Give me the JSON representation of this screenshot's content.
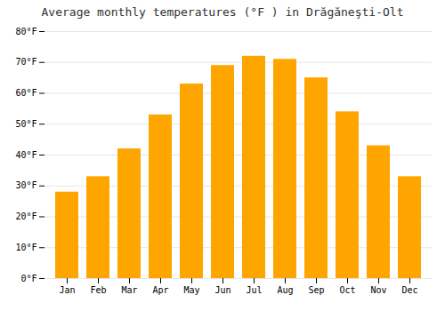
{
  "chart_data": {
    "type": "bar",
    "title": "Average monthly temperatures (°F ) in Drăgăneşti-Olt",
    "categories": [
      "Jan",
      "Feb",
      "Mar",
      "Apr",
      "May",
      "Jun",
      "Jul",
      "Aug",
      "Sep",
      "Oct",
      "Nov",
      "Dec"
    ],
    "values": [
      28,
      33,
      42,
      53,
      63,
      69,
      72,
      71,
      65,
      54,
      43,
      33
    ],
    "color": "#FFA500",
    "ylim": [
      0,
      80
    ],
    "yticks": [
      {
        "value": 0,
        "label": "0°F"
      },
      {
        "value": 10,
        "label": "10°F"
      },
      {
        "value": 20,
        "label": "20°F"
      },
      {
        "value": 30,
        "label": "30°F"
      },
      {
        "value": 40,
        "label": "40°F"
      },
      {
        "value": 50,
        "label": "50°F"
      },
      {
        "value": 60,
        "label": "60°F"
      },
      {
        "value": 70,
        "label": "70°F"
      },
      {
        "value": 80,
        "label": "80°F"
      }
    ],
    "grid": true
  }
}
